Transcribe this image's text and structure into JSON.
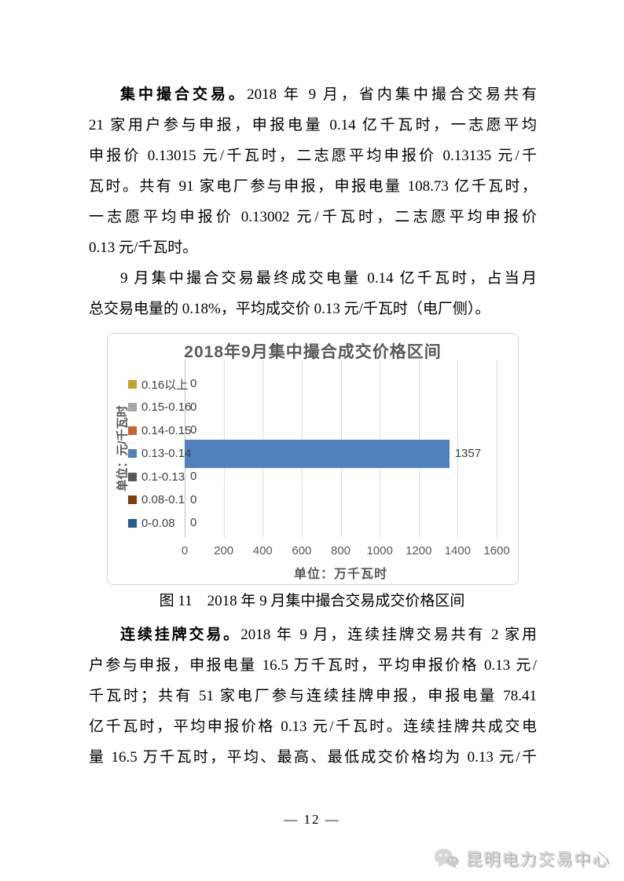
{
  "document": {
    "paragraphs": [
      {
        "justify_last": false,
        "lines": [
          {
            "segments": [
              {
                "text": "集中撮合交易。",
                "bold": true
              },
              {
                "text": "2018 年 9 月，省内集中撮合交易共有",
                "bold": false
              }
            ]
          },
          {
            "segments": [
              {
                "text": "21 家用户参与申报，申报电量 0.14 亿千瓦时，一志愿平均",
                "bold": false
              }
            ]
          },
          {
            "segments": [
              {
                "text": "申报价 0.13015 元/千瓦时，二志愿平均申报价 0.13135 元/千",
                "bold": false
              }
            ]
          },
          {
            "segments": [
              {
                "text": "瓦时。共有 91 家电厂参与申报，申报电量 108.73 亿千瓦时，",
                "bold": false
              }
            ]
          },
          {
            "segments": [
              {
                "text": "一志愿平均申报价 0.13002 元/千瓦时，二志愿平均申报价",
                "bold": false
              }
            ]
          },
          {
            "segments": [
              {
                "text": "0.13 元/千瓦时。",
                "bold": false
              }
            ]
          }
        ]
      },
      {
        "justify_last": false,
        "lines": [
          {
            "segments": [
              {
                "text": "9 月集中撮合交易最终成交电量 0.14 亿千瓦时，占当月",
                "bold": false
              }
            ]
          },
          {
            "segments": [
              {
                "text": "总交易电量的 0.18%，平均成交价 0.13 元/千瓦时（电厂侧）。",
                "bold": false
              }
            ]
          }
        ]
      },
      {
        "justify_last": true,
        "lines": [
          {
            "segments": [
              {
                "text": "连续挂牌交易。",
                "bold": true
              },
              {
                "text": "2018 年 9 月，连续挂牌交易共有 2 家用",
                "bold": false
              }
            ]
          },
          {
            "segments": [
              {
                "text": "户参与申报，申报电量 16.5 万千瓦时，平均申报价格 0.13 元/",
                "bold": false
              }
            ]
          },
          {
            "segments": [
              {
                "text": "千瓦时；共有 51 家电厂参与连续挂牌申报，申报电量 78.41",
                "bold": false
              }
            ]
          },
          {
            "segments": [
              {
                "text": "亿千瓦时，平均申报价格 0.13 元/千瓦时。连续挂牌共成交电",
                "bold": false
              }
            ]
          },
          {
            "segments": [
              {
                "text": "量 16.5 万千瓦时，平均、最高、最低成交价格均为 0.13 元/千",
                "bold": false
              }
            ]
          }
        ]
      }
    ]
  },
  "chart_data": {
    "type": "bar",
    "orientation": "horizontal",
    "title": "2018年9月集中撮合成交价格区间",
    "categories": [
      "0.16以上",
      "0.15-0.16",
      "0.14-0.15",
      "0.13-0.14",
      "0.1-0.13",
      "0.08-0.1",
      "0-0.08"
    ],
    "values": [
      0,
      0,
      0,
      1357,
      0,
      0,
      0
    ],
    "category_colors": [
      "#C9A227",
      "#A6A6A6",
      "#C8622C",
      "#4E81BD",
      "#5A5A5A",
      "#7F3E10",
      "#255E91"
    ],
    "bar_color": "#4E81BD",
    "xlabel": "单位：万千瓦时",
    "ylabel": "单位：元/千瓦时",
    "xlim": [
      0,
      1600
    ],
    "xticks": [
      0,
      200,
      400,
      600,
      800,
      1000,
      1200,
      1400,
      1600
    ],
    "grid": true,
    "legend_position": "left",
    "text_color": "#595959"
  },
  "figure": {
    "caption": "图 11　2018 年 9 月集中撮合交易成交价格区间"
  },
  "page_number": "— 12 —",
  "footer": {
    "brand": "昆明电力交易中心",
    "icon": "wechat-icon"
  }
}
